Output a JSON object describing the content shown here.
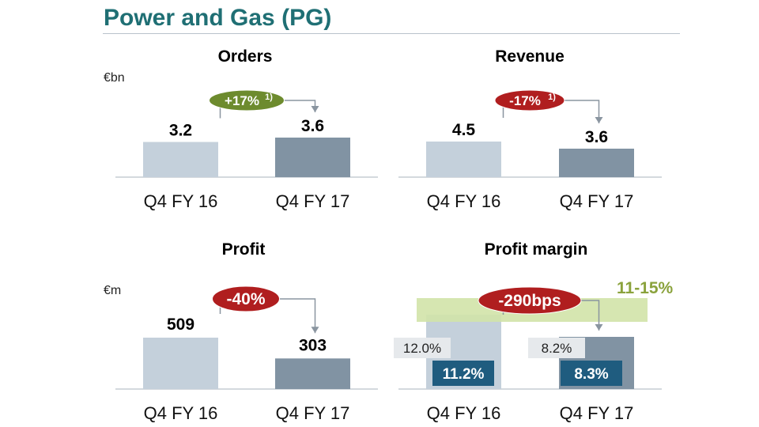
{
  "page": {
    "title": "Power and Gas (PG)"
  },
  "colors": {
    "bar_prior": "#c4d0db",
    "bar_current": "#8193a3",
    "pill_positive": "#6d8b2e",
    "pill_negative": "#b01e1f",
    "target_band": "#d2e3a8",
    "target_text": "#8aa23c",
    "margin_label_bg": "#1f5c7f",
    "arrow": "#8a95a0"
  },
  "chart_data": [
    {
      "type": "bar",
      "title": "Orders",
      "unit": "€bn",
      "categories": [
        "Q4 FY 16",
        "Q4 FY 17"
      ],
      "values": [
        3.2,
        3.6
      ],
      "value_labels": [
        "3.2",
        "3.6"
      ],
      "change": {
        "label": "+17%",
        "footnote": "1)",
        "direction": "up"
      }
    },
    {
      "type": "bar",
      "title": "Revenue",
      "unit": "",
      "categories": [
        "Q4 FY 16",
        "Q4 FY 17"
      ],
      "values": [
        4.5,
        3.6
      ],
      "value_labels": [
        "4.5",
        "3.6"
      ],
      "change": {
        "label": "-17%",
        "footnote": "1)",
        "direction": "down"
      }
    },
    {
      "type": "bar",
      "title": "Profit",
      "unit": "€m",
      "categories": [
        "Q4 FY 16",
        "Q4 FY 17"
      ],
      "values": [
        509,
        303
      ],
      "value_labels": [
        "509",
        "303"
      ],
      "change": {
        "label": "-40%",
        "footnote": "",
        "direction": "down"
      }
    },
    {
      "type": "bar",
      "title": "Profit margin",
      "unit": "",
      "categories": [
        "Q4 FY 16",
        "Q4 FY 17"
      ],
      "values": [
        11.2,
        8.3
      ],
      "value_labels": [
        "11.2%",
        "8.3%"
      ],
      "secondary_values": [
        12.0,
        8.2
      ],
      "secondary_labels": [
        "12.0%",
        "8.2%"
      ],
      "target_range": {
        "label": "11-15%",
        "low": 11,
        "high": 15
      },
      "change": {
        "label": "-290bps",
        "footnote": "",
        "direction": "down"
      }
    }
  ]
}
